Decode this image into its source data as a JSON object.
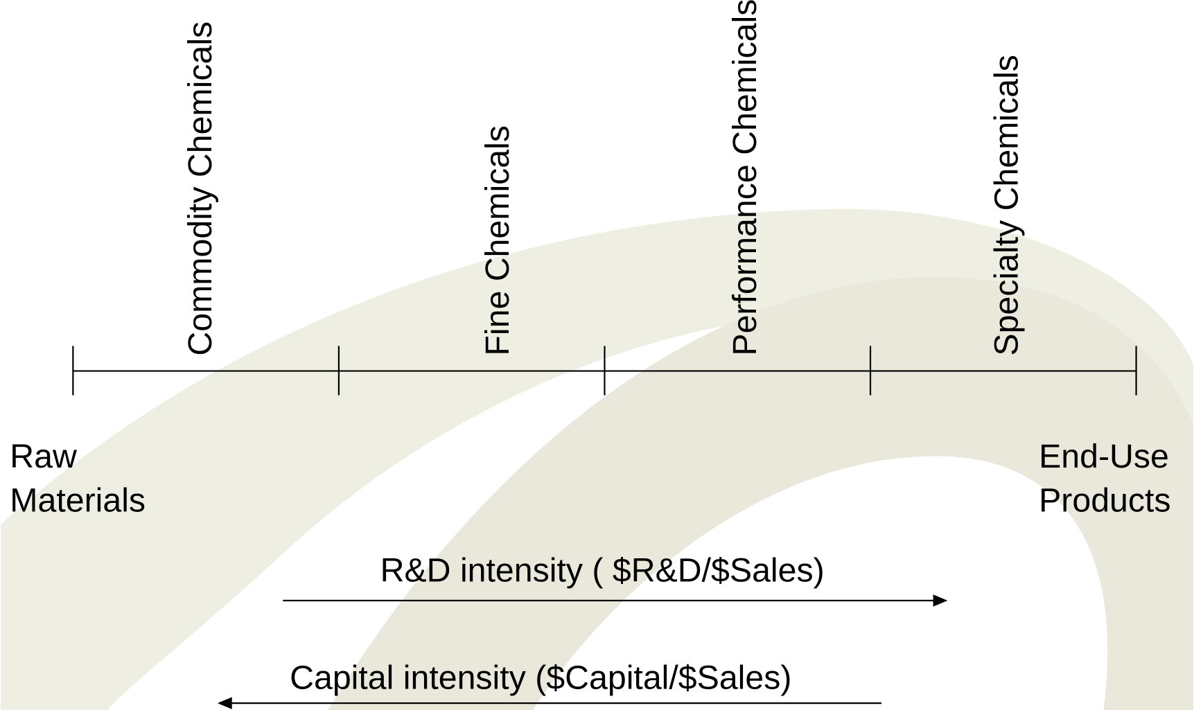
{
  "stages": [
    "Commodity Chemicals",
    "Fine Chemicals",
    "Performance Chemicals",
    "Specialty Chemicals"
  ],
  "start_label": [
    "Raw",
    "Materials"
  ],
  "end_label": [
    "End-Use",
    "Products"
  ],
  "arrows": {
    "rd": "R&D intensity  ( $R&D/$Sales)",
    "capital": "Capital intensity ($Capital/$Sales)"
  }
}
